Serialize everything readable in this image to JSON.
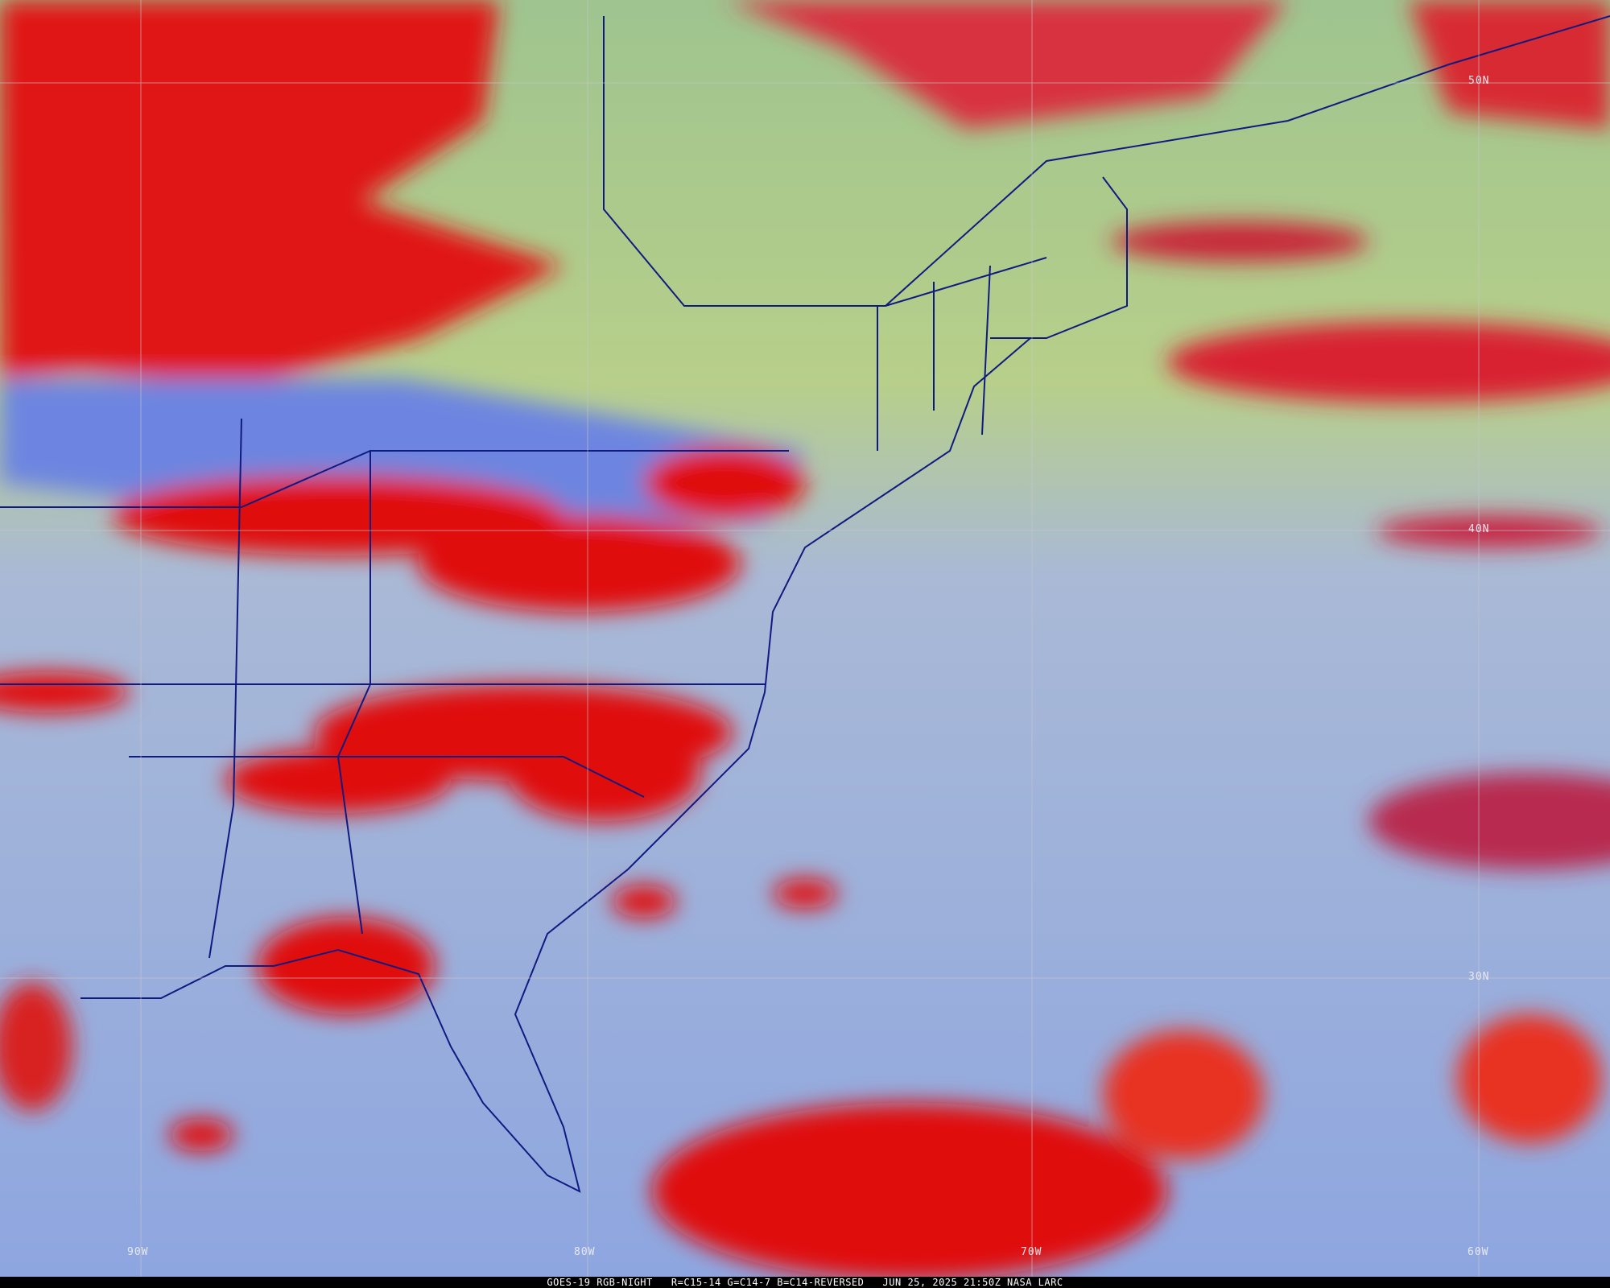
{
  "caption": "GOES-19 RGB-NIGHT   R=C15-14 G=C14-7 B=C14-REVERSED   JUN 25, 2025 21:50Z NASA LARC",
  "latitude_labels": [
    "50N",
    "40N",
    "30N"
  ],
  "longitude_labels": [
    "90W",
    "80W",
    "70W",
    "60W"
  ],
  "colors": {
    "thick_cloud": "#e01010",
    "clear_ocean": "#8fa6e6",
    "land": "#6f86e0",
    "low_cloud": "#a8d08a",
    "borders": "#101a80",
    "grid": "#c0c0c8"
  }
}
